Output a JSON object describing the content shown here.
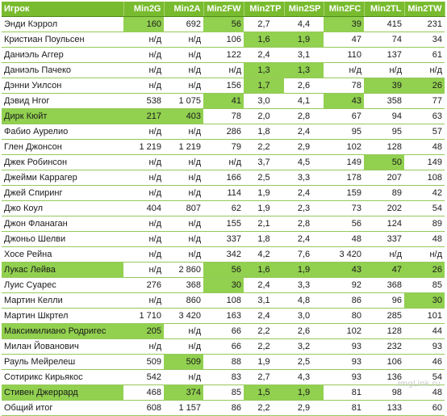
{
  "columns": [
    "Игрок",
    "Min2G",
    "Min2A",
    "Min2FW",
    "Min2TP",
    "Min2SP",
    "Min2FC",
    "Min2TL",
    "Min2TW"
  ],
  "rows": [
    {
      "cells": [
        "Энди Кэррол",
        "160",
        "692",
        "56",
        "2,7",
        "4,4",
        "39",
        "415",
        "231"
      ],
      "hl": [
        false,
        true,
        false,
        true,
        false,
        false,
        true,
        false,
        false
      ]
    },
    {
      "cells": [
        "Кристиан Поульсен",
        "н/д",
        "н/д",
        "106",
        "1,6",
        "1,9",
        "47",
        "74",
        "34"
      ],
      "hl": [
        false,
        false,
        false,
        false,
        true,
        true,
        false,
        false,
        false
      ]
    },
    {
      "cells": [
        "Даниэль Аггер",
        "н/д",
        "н/д",
        "122",
        "2,4",
        "3,1",
        "110",
        "137",
        "61"
      ],
      "hl": [
        false,
        false,
        false,
        false,
        false,
        false,
        false,
        false,
        false
      ]
    },
    {
      "cells": [
        "Даниэль Пачеко",
        "н/д",
        "н/д",
        "н/д",
        "1,3",
        "1,3",
        "н/д",
        "н/д",
        "н/д"
      ],
      "hl": [
        false,
        false,
        false,
        false,
        true,
        true,
        false,
        false,
        false
      ]
    },
    {
      "cells": [
        "Дэнни Уилсон",
        "н/д",
        "н/д",
        "156",
        "1,7",
        "2,6",
        "78",
        "39",
        "26"
      ],
      "hl": [
        false,
        false,
        false,
        false,
        true,
        false,
        false,
        true,
        true
      ]
    },
    {
      "cells": [
        "Дэвид Нгог",
        "538",
        "1 075",
        "41",
        "3,0",
        "4,1",
        "43",
        "358",
        "77"
      ],
      "hl": [
        false,
        false,
        false,
        true,
        false,
        false,
        true,
        false,
        false
      ]
    },
    {
      "cells": [
        "Дирк Кюйт",
        "217",
        "403",
        "78",
        "2,0",
        "2,8",
        "67",
        "94",
        "63"
      ],
      "hl": [
        true,
        true,
        true,
        false,
        false,
        false,
        false,
        false,
        false
      ]
    },
    {
      "cells": [
        "Фабио Аурелио",
        "н/д",
        "н/д",
        "286",
        "1,8",
        "2,4",
        "95",
        "95",
        "57"
      ],
      "hl": [
        false,
        false,
        false,
        false,
        false,
        false,
        false,
        false,
        false
      ]
    },
    {
      "cells": [
        "Глен Джонсон",
        "1 219",
        "1 219",
        "79",
        "2,2",
        "2,9",
        "102",
        "128",
        "48"
      ],
      "hl": [
        false,
        false,
        false,
        false,
        false,
        false,
        false,
        false,
        false
      ]
    },
    {
      "cells": [
        "Джек Робинсон",
        "н/д",
        "н/д",
        "н/д",
        "3,7",
        "4,5",
        "149",
        "50",
        "149"
      ],
      "hl": [
        false,
        false,
        false,
        false,
        false,
        false,
        false,
        true,
        false
      ]
    },
    {
      "cells": [
        "Джейми Каррагер",
        "н/д",
        "н/д",
        "166",
        "2,5",
        "3,3",
        "178",
        "207",
        "108"
      ],
      "hl": [
        false,
        false,
        false,
        false,
        false,
        false,
        false,
        false,
        false
      ]
    },
    {
      "cells": [
        "Джей Спиринг",
        "н/д",
        "н/д",
        "114",
        "1,9",
        "2,4",
        "159",
        "89",
        "42"
      ],
      "hl": [
        false,
        false,
        false,
        false,
        false,
        false,
        false,
        false,
        false
      ]
    },
    {
      "cells": [
        "Джо Коул",
        "404",
        "807",
        "62",
        "1,9",
        "2,3",
        "73",
        "202",
        "54"
      ],
      "hl": [
        false,
        false,
        false,
        false,
        false,
        false,
        false,
        false,
        false
      ]
    },
    {
      "cells": [
        "Джон Фланаган",
        "н/д",
        "н/д",
        "155",
        "2,1",
        "2,8",
        "56",
        "124",
        "89"
      ],
      "hl": [
        false,
        false,
        false,
        false,
        false,
        false,
        false,
        false,
        false
      ]
    },
    {
      "cells": [
        "Джоньо Шелви",
        "н/д",
        "н/д",
        "337",
        "1,8",
        "2,4",
        "48",
        "337",
        "48"
      ],
      "hl": [
        false,
        false,
        false,
        false,
        false,
        false,
        false,
        false,
        false
      ]
    },
    {
      "cells": [
        "Хосе Рейна",
        "н/д",
        "н/д",
        "342",
        "4,2",
        "7,6",
        "3 420",
        "н/д",
        "н/д"
      ],
      "hl": [
        false,
        false,
        false,
        false,
        false,
        false,
        false,
        false,
        false
      ]
    },
    {
      "cells": [
        "Лукас Лейва",
        "н/д",
        "2 860",
        "56",
        "1,6",
        "1,9",
        "43",
        "47",
        "26"
      ],
      "hl": [
        true,
        false,
        false,
        true,
        true,
        true,
        true,
        true,
        true
      ]
    },
    {
      "cells": [
        "Луис Суарес",
        "276",
        "368",
        "30",
        "2,4",
        "3,3",
        "92",
        "368",
        "85"
      ],
      "hl": [
        false,
        false,
        false,
        true,
        false,
        false,
        false,
        false,
        false
      ]
    },
    {
      "cells": [
        "Мартин Келли",
        "н/д",
        "860",
        "108",
        "3,1",
        "4,8",
        "86",
        "96",
        "30"
      ],
      "hl": [
        false,
        false,
        false,
        false,
        false,
        false,
        false,
        false,
        true
      ]
    },
    {
      "cells": [
        "Мартин Шкртел",
        "1 710",
        "3 420",
        "163",
        "2,4",
        "3,0",
        "80",
        "285",
        "101"
      ],
      "hl": [
        false,
        false,
        false,
        false,
        false,
        false,
        false,
        false,
        false
      ]
    },
    {
      "cells": [
        "Максимилиано Родригес",
        "205",
        "н/д",
        "66",
        "2,2",
        "2,6",
        "102",
        "128",
        "44"
      ],
      "hl": [
        true,
        true,
        false,
        false,
        false,
        false,
        false,
        false,
        false
      ]
    },
    {
      "cells": [
        "Милан Йованович",
        "н/д",
        "н/д",
        "66",
        "2,2",
        "3,2",
        "93",
        "232",
        "93"
      ],
      "hl": [
        false,
        false,
        false,
        false,
        false,
        false,
        false,
        false,
        false
      ]
    },
    {
      "cells": [
        "Рауль Мейрелеш",
        "509",
        "509",
        "88",
        "1,9",
        "2,5",
        "93",
        "106",
        "46"
      ],
      "hl": [
        false,
        false,
        true,
        false,
        false,
        false,
        false,
        false,
        false
      ]
    },
    {
      "cells": [
        "Сотирикс Кирьякос",
        "542",
        "н/д",
        "83",
        "2,7",
        "4,3",
        "93",
        "136",
        "54"
      ],
      "hl": [
        false,
        false,
        false,
        false,
        false,
        false,
        false,
        false,
        false
      ]
    },
    {
      "cells": [
        "Стивен Джеррард",
        "468",
        "374",
        "85",
        "1,5",
        "1,9",
        "81",
        "98",
        "48"
      ],
      "hl": [
        true,
        false,
        true,
        false,
        true,
        true,
        false,
        false,
        false
      ]
    },
    {
      "cells": [
        "Общий итог",
        "608",
        "1 157",
        "86",
        "2,2",
        "2,9",
        "81",
        "133",
        "60"
      ],
      "hl": [
        false,
        false,
        false,
        false,
        false,
        false,
        false,
        false,
        false
      ]
    }
  ],
  "watermark": "ImgLink.ru",
  "colors": {
    "header_bg": "#79bb2f",
    "highlight": "#92d050",
    "row_border": "#95c95a"
  }
}
